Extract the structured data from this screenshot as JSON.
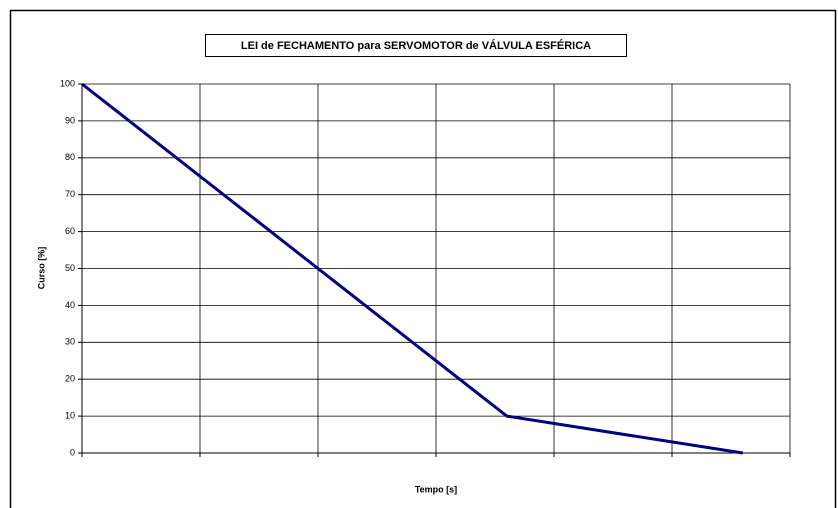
{
  "chart_data": {
    "type": "line",
    "title": "LEI de FECHAMENTO para SERVOMOTOR de VÁLVULA ESFÉRICA",
    "x_label": "Tempo [s]",
    "y_label": "Curso [%]",
    "x": [
      0,
      3.6,
      5.6
    ],
    "values": [
      100,
      10,
      0
    ],
    "color": "#000080",
    "xlim": [
      0,
      6
    ],
    "xticks": [
      0,
      1,
      2,
      3,
      4,
      5,
      6
    ],
    "xtick_labels_shown": false,
    "ylim": [
      0,
      100
    ],
    "yticks": [
      0,
      10,
      20,
      30,
      40,
      50,
      60,
      70,
      80,
      90,
      100
    ],
    "grid": true
  }
}
